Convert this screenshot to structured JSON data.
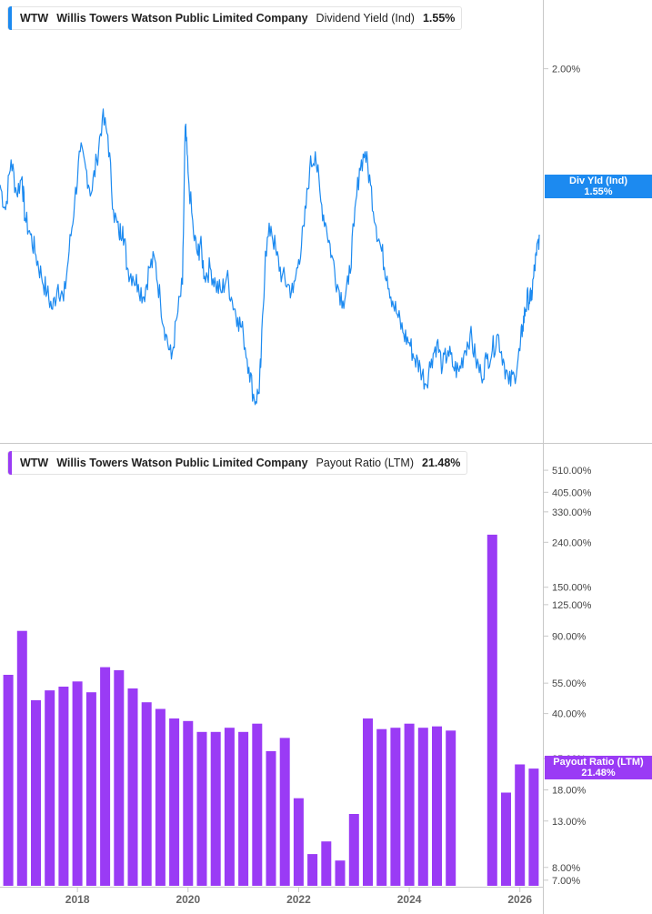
{
  "colors": {
    "line": "#1c8af0",
    "bar": "#9a3bf5",
    "axis": "#c8c8c8",
    "text": "#444444"
  },
  "top_panel": {
    "ticker": "WTW",
    "company": "Willis Towers Watson Public Limited Company",
    "metric": "Dividend Yield (Ind)",
    "value": "1.55%",
    "tag_line1": "Div Yld (Ind)",
    "tag_line2": "1.55%"
  },
  "bottom_panel": {
    "ticker": "WTW",
    "company": "Willis Towers Watson Public Limited Company",
    "metric": "Payout Ratio (LTM)",
    "value": "21.48%",
    "tag_line1": "Payout Ratio (LTM)",
    "tag_line2": "21.48%"
  },
  "chart_data": [
    {
      "type": "line",
      "title": "",
      "xlabel": "",
      "ylabel": "",
      "y_ticks": [
        "2.00%"
      ],
      "y_tick_values": [
        2.0
      ],
      "ylim": [
        1.1,
        2.1
      ],
      "xlim": [
        2016.6,
        2026.35
      ],
      "series": [
        {
          "name": "Dividend Yield (Ind)",
          "x": [
            2016.6,
            2016.7,
            2016.8,
            2016.9,
            2017.0,
            2017.05,
            2017.15,
            2017.25,
            2017.35,
            2017.45,
            2017.55,
            2017.65,
            2017.75,
            2017.85,
            2017.95,
            2018.05,
            2018.15,
            2018.25,
            2018.35,
            2018.45,
            2018.55,
            2018.65,
            2018.75,
            2018.82,
            2018.9,
            2019.0,
            2019.1,
            2019.2,
            2019.3,
            2019.4,
            2019.5,
            2019.6,
            2019.7,
            2019.8,
            2019.9,
            2019.95,
            2020.0,
            2020.1,
            2020.18,
            2020.22,
            2020.3,
            2020.4,
            2020.5,
            2020.6,
            2020.7,
            2020.8,
            2020.9,
            2021.0,
            2021.1,
            2021.2,
            2021.28,
            2021.32,
            2021.4,
            2021.5,
            2021.6,
            2021.7,
            2021.8,
            2021.9,
            2022.0,
            2022.1,
            2022.2,
            2022.3,
            2022.4,
            2022.5,
            2022.6,
            2022.7,
            2022.8,
            2022.9,
            2023.0,
            2023.1,
            2023.2,
            2023.3,
            2023.4,
            2023.5,
            2023.6,
            2023.7,
            2023.8,
            2023.9,
            2024.0,
            2024.1,
            2024.2,
            2024.3,
            2024.4,
            2024.5,
            2024.6,
            2024.7,
            2024.8,
            2024.9,
            2025.0,
            2025.1,
            2025.2,
            2025.3,
            2025.4,
            2025.5,
            2025.6,
            2025.7,
            2025.8,
            2025.9,
            2026.0,
            2026.05,
            2026.1,
            2026.15,
            2026.2,
            2026.25,
            2026.3,
            2026.35
          ],
          "values": [
            1.72,
            1.66,
            1.78,
            1.7,
            1.74,
            1.64,
            1.6,
            1.55,
            1.5,
            1.46,
            1.42,
            1.48,
            1.44,
            1.56,
            1.68,
            1.8,
            1.76,
            1.7,
            1.78,
            1.88,
            1.84,
            1.66,
            1.6,
            1.62,
            1.52,
            1.5,
            1.48,
            1.45,
            1.52,
            1.54,
            1.44,
            1.36,
            1.3,
            1.4,
            1.48,
            1.86,
            1.75,
            1.6,
            1.55,
            1.58,
            1.5,
            1.52,
            1.48,
            1.46,
            1.5,
            1.44,
            1.4,
            1.36,
            1.28,
            1.2,
            1.22,
            1.3,
            1.56,
            1.62,
            1.55,
            1.5,
            1.48,
            1.46,
            1.54,
            1.62,
            1.76,
            1.8,
            1.68,
            1.62,
            1.55,
            1.48,
            1.44,
            1.48,
            1.62,
            1.76,
            1.8,
            1.72,
            1.62,
            1.56,
            1.5,
            1.44,
            1.4,
            1.36,
            1.34,
            1.3,
            1.28,
            1.24,
            1.3,
            1.34,
            1.28,
            1.32,
            1.28,
            1.27,
            1.32,
            1.36,
            1.3,
            1.26,
            1.3,
            1.32,
            1.36,
            1.3,
            1.24,
            1.26,
            1.32,
            1.38,
            1.42,
            1.45,
            1.44,
            1.5,
            1.55,
            1.6
          ]
        }
      ]
    },
    {
      "type": "bar",
      "title": "",
      "xlabel": "",
      "ylabel": "",
      "scale": "log",
      "ylim": [
        6.6,
        600
      ],
      "y_ticks": [
        "510.00%",
        "405.00%",
        "330.00%",
        "240.00%",
        "150.00%",
        "125.00%",
        "90.00%",
        "55.00%",
        "40.00%",
        "25.00%",
        "18.00%",
        "13.00%",
        "8.00%",
        "7.00%"
      ],
      "y_tick_values": [
        510,
        405,
        330,
        240,
        150,
        125,
        90,
        55,
        40,
        25,
        18,
        13,
        8,
        7
      ],
      "x_ticks": [
        "2018",
        "2020",
        "2022",
        "2024",
        "2026"
      ],
      "x_tick_values": [
        2018,
        2020,
        2022,
        2024,
        2026
      ],
      "xlim": [
        2016.6,
        2026.35
      ],
      "series": [
        {
          "name": "Payout Ratio (LTM)",
          "x": [
            2016.75,
            2017.0,
            2017.25,
            2017.5,
            2017.75,
            2018.0,
            2018.25,
            2018.5,
            2018.75,
            2019.0,
            2019.25,
            2019.5,
            2019.75,
            2020.0,
            2020.25,
            2020.5,
            2020.75,
            2021.0,
            2021.25,
            2021.5,
            2021.75,
            2022.0,
            2022.25,
            2022.5,
            2022.75,
            2023.0,
            2023.25,
            2023.5,
            2023.75,
            2024.0,
            2024.25,
            2024.5,
            2024.75,
            2025.0,
            2025.25,
            2025.5,
            2025.75,
            2026.0,
            2026.25
          ],
          "values": [
            60,
            95,
            46,
            51,
            53,
            56,
            50,
            65,
            63,
            52,
            45,
            42,
            38,
            37,
            33,
            33,
            34.5,
            33,
            36,
            27,
            31,
            16.5,
            9.2,
            10.5,
            8.6,
            14,
            38,
            34,
            34.5,
            36,
            34.5,
            35,
            33.5,
            null,
            null,
            260,
            17.5,
            23.5,
            22.5
          ]
        }
      ]
    }
  ]
}
